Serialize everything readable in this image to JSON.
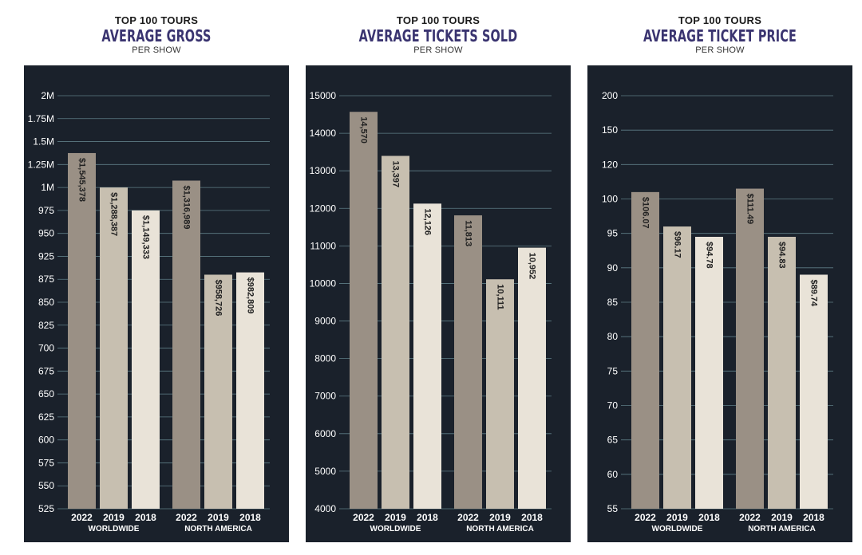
{
  "chart_data": [
    {
      "type": "bar",
      "pretitle": "TOP 100 TOURS",
      "title": "AVERAGE GROSS",
      "subtitle": "PER SHOW",
      "groups": [
        "WORLDWIDE",
        "NORTH AMERICA"
      ],
      "categories": [
        "2022",
        "2019",
        "2018",
        "2022",
        "2019",
        "2018"
      ],
      "labels": [
        "$1,545,378",
        "$1,288,387",
        "$1,149,333",
        "$1,316,989",
        "$958,726",
        "$982,809"
      ],
      "values": [
        1545378,
        1288387,
        1149333,
        1316989,
        958726,
        982809
      ],
      "yticks": [
        "2M",
        "1.75M",
        "1.5M",
        "1.25M",
        "1M",
        "975",
        "950",
        "925",
        "875",
        "850",
        "825",
        "700",
        "675",
        "650",
        "625",
        "600",
        "575",
        "550",
        "525"
      ],
      "bar_tops_in_tick_units": [
        15.5,
        14.0,
        13.0,
        14.3,
        10.2,
        10.3
      ]
    },
    {
      "type": "bar",
      "pretitle": "TOP 100 TOURS",
      "title": "AVERAGE TICKETS SOLD",
      "subtitle": "PER SHOW",
      "groups": [
        "WORLDWIDE",
        "NORTH AMERICA"
      ],
      "categories": [
        "2022",
        "2019",
        "2018",
        "2022",
        "2019",
        "2018"
      ],
      "labels": [
        "14,570",
        "13,397",
        "12,126",
        "11,813",
        "10,111",
        "10,952"
      ],
      "values": [
        14570,
        13397,
        12126,
        11813,
        10111,
        10952
      ],
      "ylim": [
        4000,
        15000
      ],
      "yticks": [
        "15000",
        "14000",
        "13000",
        "12000",
        "11000",
        "10000",
        "9000",
        "8000",
        "7000",
        "6000",
        "5000",
        "4000"
      ]
    },
    {
      "type": "bar",
      "pretitle": "TOP 100 TOURS",
      "title": "AVERAGE TICKET PRICE",
      "subtitle": "PER SHOW",
      "groups": [
        "WORLDWIDE",
        "NORTH AMERICA"
      ],
      "categories": [
        "2022",
        "2019",
        "2018",
        "2022",
        "2019",
        "2018"
      ],
      "labels": [
        "$106.07",
        "$96.17",
        "$94.78",
        "$111.49",
        "$94.83",
        "$89.74"
      ],
      "values": [
        106.07,
        96.17,
        94.78,
        111.49,
        94.83,
        89.74
      ],
      "yticks": [
        "200",
        "150",
        "120",
        "100",
        "95",
        "90",
        "85",
        "80",
        "75",
        "70",
        "65",
        "60",
        "55"
      ],
      "bar_tops_in_tick_units": [
        9.2,
        8.2,
        7.9,
        9.3,
        7.9,
        6.8
      ]
    }
  ],
  "colors": {
    "panel": "#1a212b",
    "grid": "#5e7d86",
    "bar2022": "#9a9085",
    "bar2019": "#c7bfb0",
    "bar2018": "#e9e3d8",
    "tick_text": "#ffffff",
    "label_text": "#222222"
  }
}
